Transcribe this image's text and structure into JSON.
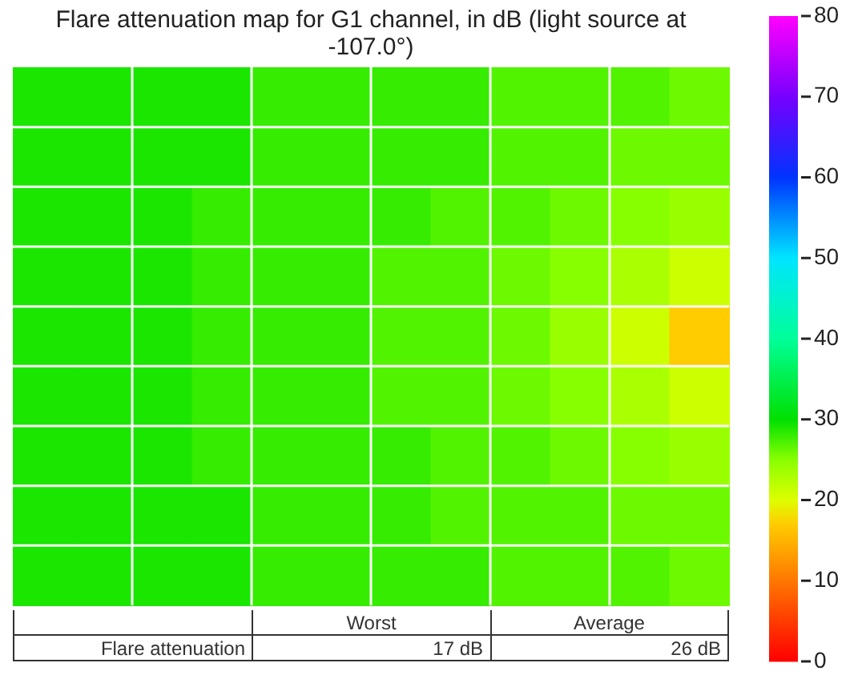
{
  "chart_data": {
    "type": "heatmap",
    "title": "Flare attenuation map for G1 channel, in dB (light source at -107.0°)",
    "categories": [
      null,
      null,
      null,
      null,
      null,
      null,
      null,
      null,
      null,
      null,
      null,
      null
    ],
    "y_categories": [
      null,
      null,
      null,
      null,
      null,
      null,
      null,
      null,
      null
    ],
    "cells": [
      [
        29,
        29,
        29,
        29,
        28,
        28,
        28,
        28,
        27,
        27,
        27,
        26
      ],
      [
        29,
        29,
        29,
        29,
        28,
        28,
        28,
        28,
        27,
        27,
        26,
        26
      ],
      [
        29,
        29,
        29,
        28,
        28,
        28,
        28,
        27,
        27,
        26,
        25,
        24
      ],
      [
        29,
        29,
        29,
        28,
        28,
        28,
        27,
        27,
        26,
        25,
        23,
        21
      ],
      [
        29,
        29,
        29,
        28,
        28,
        28,
        27,
        27,
        26,
        24,
        21,
        17
      ],
      [
        29,
        29,
        29,
        28,
        28,
        28,
        27,
        27,
        26,
        25,
        23,
        21
      ],
      [
        29,
        29,
        29,
        28,
        28,
        28,
        28,
        27,
        27,
        26,
        25,
        24
      ],
      [
        29,
        29,
        29,
        29,
        28,
        28,
        28,
        27,
        27,
        27,
        26,
        26
      ],
      [
        29,
        29,
        29,
        29,
        28,
        28,
        28,
        28,
        27,
        27,
        27,
        26
      ]
    ],
    "clim": [
      0,
      80
    ],
    "cticks": [
      0,
      10,
      20,
      30,
      40,
      50,
      60,
      70,
      80
    ],
    "grid": true,
    "annotations": [
      "Worst",
      "Average",
      "Flare attenuation",
      "17 dB",
      "26 dB"
    ]
  }
}
